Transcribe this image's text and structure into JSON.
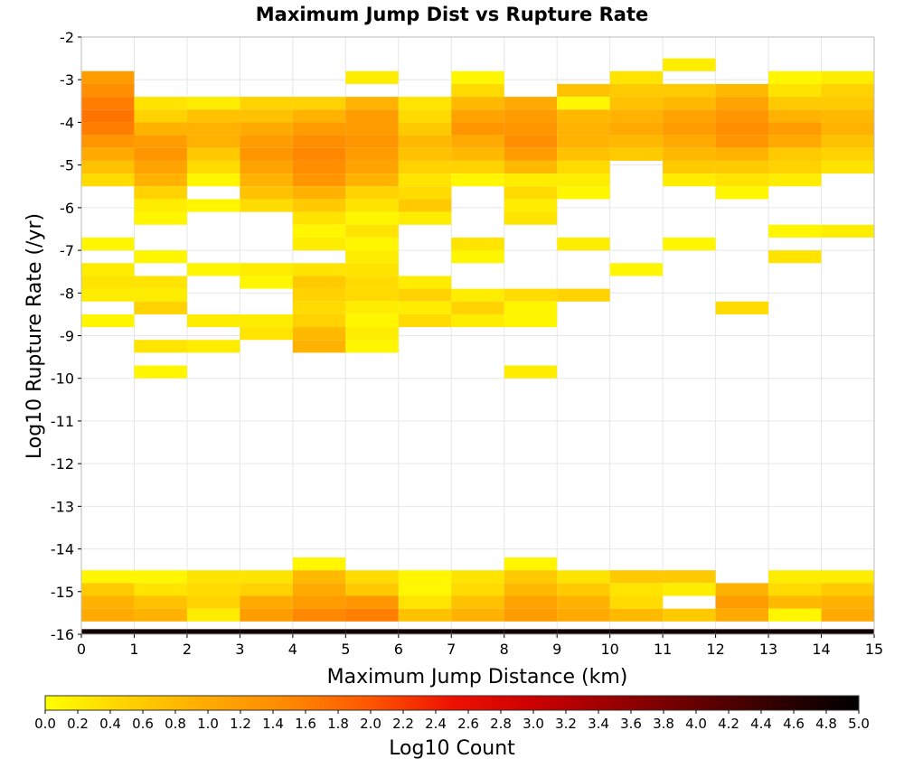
{
  "chart_data": {
    "type": "heatmap",
    "title": "Maximum Jump Dist vs Rupture Rate",
    "xlabel": "Maximum Jump Distance (km)",
    "ylabel": "Log10 Rupture Rate (/yr)",
    "xlim": [
      0,
      15
    ],
    "ylim": [
      -16,
      -2
    ],
    "x_ticks": [
      "0",
      "1",
      "2",
      "3",
      "4",
      "5",
      "6",
      "7",
      "8",
      "9",
      "10",
      "11",
      "12",
      "13",
      "14",
      "15"
    ],
    "y_ticks": [
      "-2",
      "-3",
      "-4",
      "-5",
      "-6",
      "-7",
      "-8",
      "-9",
      "-10",
      "-11",
      "-12",
      "-13",
      "-14",
      "-15",
      "-16"
    ],
    "bin_width_x": 1,
    "bin_height_y": 0.3,
    "y_start": -16,
    "colorbar": {
      "label": "Log10 Count",
      "range": [
        0,
        5
      ],
      "ticks": [
        "0.0",
        "0.2",
        "0.4",
        "0.6",
        "0.8",
        "1.0",
        "1.2",
        "1.4",
        "1.6",
        "1.8",
        "2.0",
        "2.2",
        "2.4",
        "2.6",
        "2.8",
        "3.0",
        "3.2",
        "3.4",
        "3.6",
        "3.8",
        "4.0",
        "4.2",
        "4.4",
        "4.6",
        "4.8",
        "5.0"
      ],
      "colors": [
        "#ffff00",
        "#ffd200",
        "#ffaa00",
        "#ff8800",
        "#ff5500",
        "#ee1100",
        "#cc0000",
        "#990000",
        "#660000",
        "#300000",
        "#000000"
      ]
    },
    "grid": true,
    "rows_note_y_from_top": -2,
    "columns": [
      [
        0,
        0,
        0,
        1.2,
        1.4,
        1.6,
        1.7,
        1.6,
        1.3,
        1.0,
        0.7,
        0.4,
        0,
        0,
        0,
        0,
        0.1,
        0,
        0.2,
        0.3,
        0.2,
        0,
        0.1,
        0,
        0,
        0,
        0,
        0,
        0,
        0,
        0,
        0,
        0,
        0,
        0,
        0,
        0,
        0,
        0,
        0,
        0,
        0,
        0.1,
        0.6,
        0.9,
        1.0,
        4.8
      ],
      [
        0,
        0,
        0,
        0,
        0,
        0.3,
        0.5,
        0.9,
        1.2,
        1.3,
        1.1,
        0.9,
        0.5,
        0.2,
        0.1,
        0,
        0,
        0.1,
        0,
        0.3,
        0.2,
        0.5,
        0,
        0,
        0.3,
        0,
        0.1,
        0,
        0,
        0,
        0,
        0,
        0,
        0,
        0,
        0,
        0,
        0,
        0,
        0,
        0,
        0,
        0.1,
        0.3,
        0.7,
        0.9,
        4.8
      ],
      [
        0,
        0,
        0,
        0,
        0,
        0.2,
        0.7,
        0.9,
        0.9,
        0.6,
        0.4,
        0.1,
        0,
        0.1,
        0,
        0,
        0,
        0,
        0.1,
        0,
        0,
        0,
        0.2,
        0,
        0.2,
        0,
        0,
        0,
        0,
        0,
        0,
        0,
        0,
        0,
        0,
        0,
        0,
        0,
        0,
        0,
        0,
        0,
        0.3,
        0.4,
        0.5,
        0.2,
        4.8
      ],
      [
        0,
        0,
        0,
        0,
        0,
        0.5,
        0.7,
        1.0,
        1.2,
        1.3,
        1.1,
        0.9,
        0.7,
        0.4,
        0,
        0,
        0,
        0,
        0.2,
        0.1,
        0,
        0,
        0.2,
        0.3,
        0,
        0,
        0,
        0,
        0,
        0,
        0,
        0,
        0,
        0,
        0,
        0,
        0,
        0,
        0,
        0,
        0,
        0,
        0.3,
        0.5,
        1.0,
        1.2,
        4.8
      ],
      [
        0,
        0,
        0,
        0,
        0,
        0.5,
        0.9,
        1.2,
        1.4,
        1.5,
        1.4,
        1.3,
        0.9,
        0.6,
        0.3,
        0.1,
        0.2,
        0,
        0.3,
        0.6,
        0.5,
        0.4,
        0.5,
        0.8,
        0.9,
        0,
        0,
        0,
        0,
        0,
        0,
        0,
        0,
        0,
        0,
        0,
        0,
        0,
        0,
        0,
        0,
        0.1,
        0.8,
        1.0,
        1.2,
        1.5,
        4.8
      ],
      [
        0,
        0,
        0,
        0.2,
        0,
        0.9,
        1.2,
        1.2,
        1.3,
        1.2,
        1.1,
        0.9,
        0.5,
        0.3,
        0.1,
        0.3,
        0.1,
        0.2,
        0.3,
        0.4,
        0.4,
        0.2,
        0.1,
        0.2,
        0.1,
        0,
        0,
        0,
        0,
        0,
        0,
        0,
        0,
        0,
        0,
        0,
        0,
        0,
        0,
        0,
        0,
        0,
        0.4,
        0.6,
        1.3,
        1.6,
        4.8
      ],
      [
        0,
        0,
        0,
        0,
        0,
        0.3,
        0.4,
        0.6,
        0.8,
        0.7,
        0.5,
        0.3,
        0.4,
        0.6,
        0.2,
        0,
        0,
        0,
        0,
        0.2,
        0.5,
        0.2,
        0.4,
        0,
        0,
        0,
        0,
        0,
        0,
        0,
        0,
        0,
        0,
        0,
        0,
        0,
        0,
        0,
        0,
        0,
        0,
        0,
        0.1,
        0.1,
        0.3,
        0.7,
        4.8
      ],
      [
        0,
        0,
        0,
        0.1,
        0.4,
        0.8,
        1.1,
        1.3,
        1.0,
        0.8,
        0.5,
        0.1,
        0,
        0,
        0,
        0,
        0.3,
        0.1,
        0,
        0,
        0.2,
        0.5,
        0.2,
        0,
        0,
        0,
        0,
        0,
        0,
        0,
        0,
        0,
        0,
        0,
        0,
        0,
        0,
        0,
        0,
        0,
        0,
        0,
        0.3,
        0.4,
        0.7,
        0.9,
        4.8
      ],
      [
        0,
        0,
        0,
        0,
        0,
        1.0,
        1.2,
        1.3,
        1.4,
        1.2,
        0.8,
        0.2,
        0.4,
        0.2,
        0.3,
        0,
        0,
        0,
        0,
        0,
        0.4,
        0.1,
        0.1,
        0,
        0,
        0,
        0.2,
        0,
        0,
        0,
        0,
        0,
        0,
        0,
        0,
        0,
        0,
        0,
        0,
        0,
        0,
        0.1,
        0.6,
        0.8,
        1.1,
        1.2,
        4.8
      ],
      [
        0,
        0,
        0,
        0,
        0.7,
        0.1,
        0.8,
        0.9,
        0.9,
        0.7,
        0.4,
        0.2,
        0.1,
        0,
        0,
        0,
        0.2,
        0,
        0,
        0,
        0.5,
        0,
        0,
        0,
        0,
        0,
        0,
        0,
        0,
        0,
        0,
        0,
        0,
        0,
        0,
        0,
        0,
        0,
        0,
        0,
        0,
        0,
        0.3,
        0.6,
        0.9,
        1.0,
        4.8
      ],
      [
        0,
        0,
        0,
        0.3,
        0.6,
        0.7,
        0.9,
        1.0,
        0.8,
        0.6,
        0,
        0,
        0,
        0,
        0,
        0,
        0,
        0,
        0.1,
        0,
        0,
        0,
        0,
        0,
        0,
        0,
        0,
        0,
        0,
        0,
        0,
        0,
        0,
        0,
        0,
        0,
        0,
        0,
        0,
        0,
        0,
        0,
        0.6,
        0.3,
        0.4,
        0.8,
        4.8
      ],
      [
        0,
        0,
        0.2,
        0,
        0.6,
        0.8,
        1.1,
        1.2,
        1.0,
        0.8,
        0.6,
        0.2,
        0,
        0,
        0,
        0,
        0.1,
        0,
        0,
        0,
        0,
        0,
        0,
        0,
        0,
        0,
        0,
        0,
        0,
        0,
        0,
        0,
        0,
        0,
        0,
        0,
        0,
        0,
        0,
        0,
        0,
        0,
        0.6,
        0.2,
        0,
        0.6,
        4.8
      ],
      [
        0,
        0,
        0,
        0,
        0.8,
        1.1,
        1.3,
        1.4,
        1.3,
        0.9,
        0.6,
        0.3,
        0.1,
        0,
        0,
        0,
        0,
        0,
        0,
        0,
        0,
        0.4,
        0,
        0,
        0,
        0,
        0,
        0,
        0,
        0,
        0,
        0,
        0,
        0,
        0,
        0,
        0,
        0,
        0,
        0,
        0,
        0,
        0,
        0.9,
        1.2,
        1.0,
        4.8
      ],
      [
        0,
        0,
        0,
        0.1,
        0.3,
        0.6,
        0.9,
        1.2,
        1.0,
        0.6,
        0.5,
        0.2,
        0,
        0,
        0,
        0.1,
        0,
        0.3,
        0,
        0,
        0,
        0,
        0,
        0,
        0,
        0,
        0,
        0,
        0,
        0,
        0,
        0,
        0,
        0,
        0,
        0,
        0,
        0,
        0,
        0,
        0,
        0,
        0.2,
        0.4,
        0.8,
        0.1,
        4.8
      ],
      [
        0,
        0,
        0,
        0.2,
        0.5,
        0.6,
        0.8,
        0.9,
        0.7,
        0.5,
        0.3,
        0,
        0,
        0,
        0,
        0.2,
        0,
        0,
        0,
        0,
        0,
        0,
        0,
        0,
        0,
        0,
        0,
        0,
        0,
        0,
        0,
        0,
        0,
        0,
        0,
        0,
        0,
        0,
        0,
        0,
        0,
        0,
        0.2,
        0.6,
        0.9,
        1.0,
        4.8
      ]
    ]
  }
}
